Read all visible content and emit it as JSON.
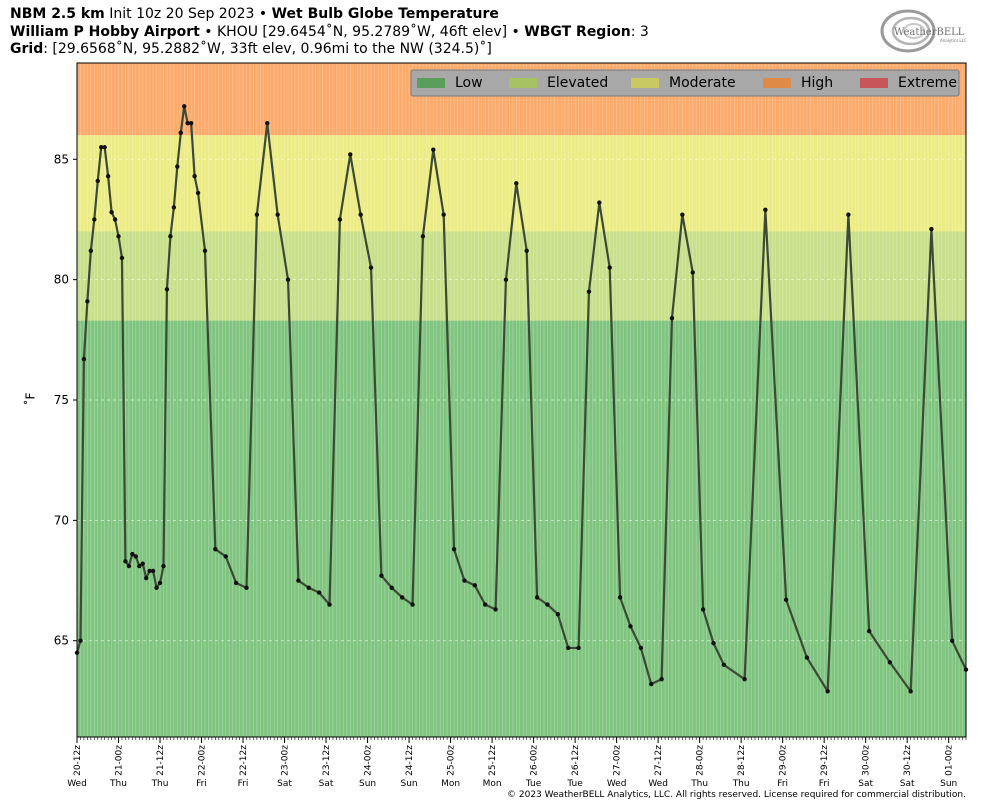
{
  "header": {
    "line1": {
      "model": "NBM 2.5 km",
      "init": " Init 10z 20 Sep 2023 • ",
      "product": "Wet Bulb Globe Temperature"
    },
    "line2": {
      "station": "William P Hobby Airport",
      "station_info": " • KHOU [29.6454˚N, 95.2789˚W, 46ft elev] • ",
      "region_label": "WBGT Region",
      "region_value": ": 3"
    },
    "line3": {
      "grid_label": "Grid",
      "grid_value": ": [29.6568˚N, 95.2882˚W, 33ft elev, 0.96mi to the NW (324.5)˚]"
    }
  },
  "logo": {
    "text": "WeatherBELL",
    "subtext": "Analytics LLC"
  },
  "copyright": "© 2023 WeatherBELL Analytics, LLC. All rights reserved. License required for commercial distribution.",
  "colors": {
    "low": "#7fc47f",
    "elevated": "#c7e08a",
    "moderate": "#ecec84",
    "high": "#fdaa6a",
    "extreme": "#c7555a",
    "line": "#3b4a35",
    "point": "#111111"
  },
  "chart_data": {
    "type": "line",
    "title": "Wet Bulb Globe Temperature",
    "ylabel": "˚F",
    "ylim": [
      61,
      89
    ],
    "yticks": [
      65,
      70,
      75,
      80,
      85
    ],
    "grid": true,
    "legend_placement": "top-right",
    "legend": [
      {
        "name": "Low",
        "color": "#5a9e5a"
      },
      {
        "name": "Elevated",
        "color": "#a6c263"
      },
      {
        "name": "Moderate",
        "color": "#c9c964"
      },
      {
        "name": "High",
        "color": "#e08a48"
      },
      {
        "name": "Extreme",
        "color": "#c7555a"
      }
    ],
    "bands": [
      {
        "name": "Low",
        "from": 61,
        "to": 78.3
      },
      {
        "name": "Elevated",
        "from": 78.3,
        "to": 82
      },
      {
        "name": "Moderate",
        "from": 82,
        "to": 86
      },
      {
        "name": "High",
        "from": 86,
        "to": 89
      }
    ],
    "x_unit": "hours from 20-12z",
    "xlim": [
      0,
      257
    ],
    "xticks": [
      {
        "h": 0,
        "label": "20-12z",
        "day": "Wed"
      },
      {
        "h": 12,
        "label": "21-00z",
        "day": "Thu"
      },
      {
        "h": 24,
        "label": "21-12z",
        "day": "Thu"
      },
      {
        "h": 36,
        "label": "22-00z",
        "day": "Fri"
      },
      {
        "h": 48,
        "label": "22-12z",
        "day": "Fri"
      },
      {
        "h": 60,
        "label": "23-00z",
        "day": "Sat"
      },
      {
        "h": 72,
        "label": "23-12z",
        "day": "Sat"
      },
      {
        "h": 84,
        "label": "24-00z",
        "day": "Sun"
      },
      {
        "h": 96,
        "label": "24-12z",
        "day": "Sun"
      },
      {
        "h": 108,
        "label": "25-00z",
        "day": "Mon"
      },
      {
        "h": 120,
        "label": "25-12z",
        "day": "Mon"
      },
      {
        "h": 132,
        "label": "26-00z",
        "day": "Tue"
      },
      {
        "h": 144,
        "label": "26-12z",
        "day": "Tue"
      },
      {
        "h": 156,
        "label": "27-00z",
        "day": "Wed"
      },
      {
        "h": 168,
        "label": "27-12z",
        "day": "Wed"
      },
      {
        "h": 180,
        "label": "28-00z",
        "day": "Thu"
      },
      {
        "h": 192,
        "label": "28-12z",
        "day": "Thu"
      },
      {
        "h": 204,
        "label": "29-00z",
        "day": "Fri"
      },
      {
        "h": 216,
        "label": "29-12z",
        "day": "Fri"
      },
      {
        "h": 228,
        "label": "30-00z",
        "day": "Sat"
      },
      {
        "h": 240,
        "label": "30-12z",
        "day": "Sat"
      },
      {
        "h": 252,
        "label": "01-00z",
        "day": "Sun"
      }
    ],
    "series": [
      {
        "points": [
          [
            0,
            64.5
          ],
          [
            1,
            65.0
          ],
          [
            2,
            76.7
          ],
          [
            3,
            79.1
          ],
          [
            4,
            81.2
          ],
          [
            5,
            82.5
          ],
          [
            6,
            84.1
          ],
          [
            7,
            85.5
          ],
          [
            8,
            85.5
          ],
          [
            9,
            84.3
          ],
          [
            10,
            82.8
          ],
          [
            11,
            82.5
          ],
          [
            12,
            81.8
          ],
          [
            13,
            80.9
          ],
          [
            14,
            68.3
          ],
          [
            15,
            68.1
          ],
          [
            16,
            68.6
          ],
          [
            17,
            68.5
          ],
          [
            18,
            68.1
          ],
          [
            19,
            68.2
          ],
          [
            20,
            67.6
          ],
          [
            21,
            67.9
          ],
          [
            22,
            67.9
          ],
          [
            23,
            67.2
          ],
          [
            24,
            67.4
          ],
          [
            25,
            68.1
          ],
          [
            26,
            79.6
          ],
          [
            27,
            81.8
          ],
          [
            28,
            83.0
          ],
          [
            29,
            84.7
          ],
          [
            30,
            86.1
          ],
          [
            31,
            87.2
          ],
          [
            32,
            86.5
          ],
          [
            33,
            86.5
          ],
          [
            34,
            84.3
          ],
          [
            35,
            83.6
          ],
          [
            37,
            81.2
          ],
          [
            40,
            68.8
          ],
          [
            43,
            68.5
          ],
          [
            46,
            67.4
          ],
          [
            49,
            67.2
          ],
          [
            52,
            82.7
          ],
          [
            55,
            86.5
          ],
          [
            58,
            82.7
          ],
          [
            61,
            80.0
          ],
          [
            64,
            67.5
          ],
          [
            67,
            67.2
          ],
          [
            70,
            67.0
          ],
          [
            73,
            66.5
          ],
          [
            76,
            82.5
          ],
          [
            79,
            85.2
          ],
          [
            82,
            82.7
          ],
          [
            85,
            80.5
          ],
          [
            88,
            67.7
          ],
          [
            91,
            67.2
          ],
          [
            94,
            66.8
          ],
          [
            97,
            66.5
          ],
          [
            100,
            81.8
          ],
          [
            103,
            85.4
          ],
          [
            106,
            82.7
          ],
          [
            109,
            68.8
          ],
          [
            112,
            67.5
          ],
          [
            115,
            67.3
          ],
          [
            118,
            66.5
          ],
          [
            121,
            66.3
          ],
          [
            124,
            80.0
          ],
          [
            127,
            84.0
          ],
          [
            130,
            81.2
          ],
          [
            133,
            66.8
          ],
          [
            136,
            66.5
          ],
          [
            139,
            66.1
          ],
          [
            142,
            64.7
          ],
          [
            145,
            64.7
          ],
          [
            148,
            79.5
          ],
          [
            151,
            83.2
          ],
          [
            154,
            80.5
          ],
          [
            157,
            66.8
          ],
          [
            160,
            65.6
          ],
          [
            163,
            64.7
          ],
          [
            166,
            63.2
          ],
          [
            169,
            63.4
          ],
          [
            172,
            78.4
          ],
          [
            175,
            82.7
          ],
          [
            178,
            80.3
          ],
          [
            181,
            66.3
          ],
          [
            184,
            64.9
          ],
          [
            187,
            64.0
          ],
          [
            193,
            63.4
          ],
          [
            199,
            82.9
          ],
          [
            205,
            66.7
          ],
          [
            211,
            64.3
          ],
          [
            217,
            62.9
          ],
          [
            223,
            82.7
          ],
          [
            229,
            65.4
          ],
          [
            235,
            64.1
          ],
          [
            241,
            62.9
          ],
          [
            247,
            82.1
          ],
          [
            253,
            65.0
          ],
          [
            257,
            63.8
          ]
        ]
      }
    ]
  }
}
